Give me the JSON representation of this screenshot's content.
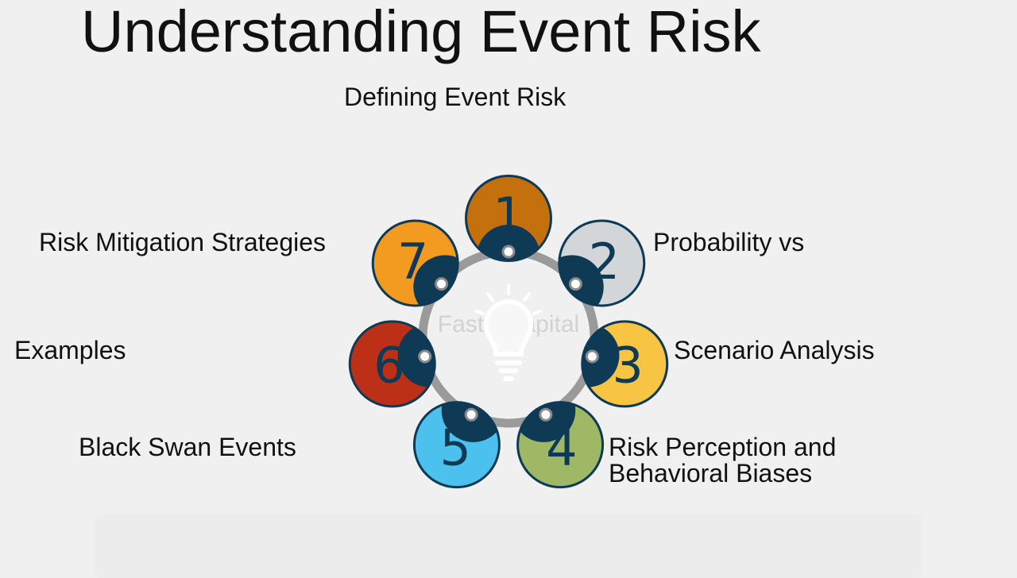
{
  "title": "Understanding Event Risk",
  "watermark": "FasterCapital",
  "colors": {
    "dark": "#0e3a55",
    "ring": "#9a9a9a",
    "bulb": "#ffffff"
  },
  "steps": [
    {
      "number": "1",
      "label": "Defining Event Risk",
      "color": "#c4700d",
      "label2": ""
    },
    {
      "number": "2",
      "label": "Probability vs",
      "color": "#d3d6d8",
      "label2": ""
    },
    {
      "number": "3",
      "label": "Scenario Analysis",
      "color": "#f7c443",
      "label2": ""
    },
    {
      "number": "4",
      "label": "Risk Perception and",
      "color": "#9fb865",
      "label2": "Behavioral Biases"
    },
    {
      "number": "5",
      "label": "Black Swan Events",
      "color": "#4cc1ed",
      "label2": ""
    },
    {
      "number": "6",
      "label": "Examples",
      "color": "#bc3018",
      "label2": ""
    },
    {
      "number": "7",
      "label": "Risk Mitigation Strategies",
      "color": "#f39a20",
      "label2": ""
    }
  ]
}
